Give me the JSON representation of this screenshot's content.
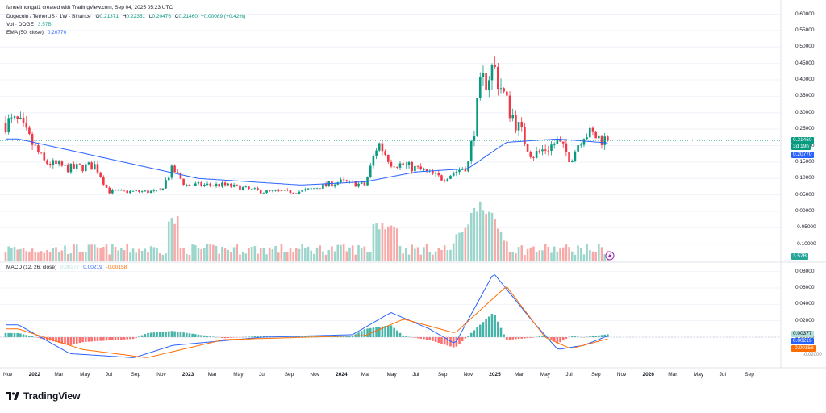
{
  "header": {
    "attribution": "fanuelmungai1 created with TradingView.com, Sep 04, 2025 05:23 UTC",
    "symbol": "Dogecoin / TetherUS · 1W · Binance",
    "ohlc": {
      "o_label": "O",
      "o": "0.21371",
      "h_label": "H",
      "h": "0.22351",
      "l_label": "L",
      "l": "0.20476",
      "c_label": "C",
      "c": "0.21460",
      "change": "+0.00089 (+0.42%)"
    },
    "vol_label": "Vol · DOGE",
    "vol_value": "3.57B",
    "ema_label": "EMA (50, close)",
    "ema_value": "0.20770"
  },
  "macd_legend": {
    "label": "MACD (12, 26, close)",
    "hist": "0.00377",
    "macd": "0.00219",
    "signal": "-0.00158"
  },
  "colors": {
    "up": "#089981",
    "down": "#f23645",
    "ema": "#2962ff",
    "macd": "#2962ff",
    "signal": "#ff6d00",
    "hist_up": "#26a69a",
    "hist_down": "#ff5252",
    "grid": "#f0f3fa",
    "price_line": "#26a69a"
  },
  "price_axis": {
    "ticks": [
      "0.60000",
      "0.55000",
      "0.50000",
      "0.45000",
      "0.40000",
      "0.35000",
      "0.30000",
      "0.25000",
      "0.20000",
      "0.15000",
      "0.10000",
      "0.05000",
      "0.00000",
      "-0.05000",
      "-0.10000"
    ],
    "last_price": "0.21460",
    "countdown": "3d 19h",
    "ema_badge": "0.20770",
    "vol_badge": "3.57B"
  },
  "macd_axis": {
    "ticks": [
      "0.08000",
      "0.06000",
      "0.04000",
      "0.02000",
      "0.00000"
    ],
    "hist_badge": "0.00377",
    "macd_badge": "0.00219",
    "signal_badge": "-0.00158",
    "partial_tick": "-0.02000"
  },
  "time_axis": [
    "Nov",
    "2022",
    "Mar",
    "May",
    "Jul",
    "Sep",
    "Nov",
    "2023",
    "Mar",
    "May",
    "Jul",
    "Sep",
    "Nov",
    "2024",
    "Mar",
    "May",
    "Jul",
    "Sep",
    "Nov",
    "2025",
    "Mar",
    "May",
    "Jul",
    "Sep",
    "Nov",
    "2026",
    "Mar",
    "May",
    "Jul",
    "Sep"
  ],
  "logo": {
    "text": "TradingView",
    "icon": "tradingview-logo-icon"
  },
  "chart_data": {
    "type": "candlestick",
    "title": "Dogecoin / TetherUS · 1W · Binance",
    "interval": "1W",
    "ylim": [
      -0.1,
      0.6
    ],
    "grid": true,
    "legend_position": "top-left",
    "series": [
      {
        "name": "DOGE/USDT",
        "unit": "USDT",
        "anchors": [
          {
            "x": "2021-11",
            "y": 0.27
          },
          {
            "x": "2022-01",
            "y": 0.15
          },
          {
            "x": "2022-03",
            "y": 0.13
          },
          {
            "x": "2022-05",
            "y": 0.14
          },
          {
            "x": "2022-06",
            "y": 0.06
          },
          {
            "x": "2022-09",
            "y": 0.06
          },
          {
            "x": "2022-10",
            "y": 0.06
          },
          {
            "x": "2022-11",
            "y": 0.13
          },
          {
            "x": "2022-12",
            "y": 0.08
          },
          {
            "x": "2023-03",
            "y": 0.08
          },
          {
            "x": "2023-06",
            "y": 0.06
          },
          {
            "x": "2023-09",
            "y": 0.06
          },
          {
            "x": "2023-12",
            "y": 0.09
          },
          {
            "x": "2024-02",
            "y": 0.08
          },
          {
            "x": "2024-03",
            "y": 0.21
          },
          {
            "x": "2024-04",
            "y": 0.15
          },
          {
            "x": "2024-06",
            "y": 0.13
          },
          {
            "x": "2024-08",
            "y": 0.1
          },
          {
            "x": "2024-10",
            "y": 0.14
          },
          {
            "x": "2024-11",
            "y": 0.38
          },
          {
            "x": "2024-12",
            "y": 0.44
          },
          {
            "x": "2025-01",
            "y": 0.33
          },
          {
            "x": "2025-03",
            "y": 0.17
          },
          {
            "x": "2025-05",
            "y": 0.21
          },
          {
            "x": "2025-06",
            "y": 0.16
          },
          {
            "x": "2025-07",
            "y": 0.24
          },
          {
            "x": "2025-09",
            "y": 0.2146
          }
        ]
      },
      {
        "name": "EMA (50, close)",
        "anchors": [
          {
            "x": "2021-11",
            "y": 0.22
          },
          {
            "x": "2022-06",
            "y": 0.16
          },
          {
            "x": "2023-01",
            "y": 0.1
          },
          {
            "x": "2023-09",
            "y": 0.08
          },
          {
            "x": "2024-02",
            "y": 0.09
          },
          {
            "x": "2024-06",
            "y": 0.12
          },
          {
            "x": "2024-10",
            "y": 0.13
          },
          {
            "x": "2025-01",
            "y": 0.21
          },
          {
            "x": "2025-05",
            "y": 0.22
          },
          {
            "x": "2025-09",
            "y": 0.2077
          }
        ]
      }
    ],
    "volume": {
      "name": "Vol · DOGE",
      "last": "3.57B",
      "peak_month": "2024-11"
    },
    "macd": {
      "ylim": [
        -0.03,
        0.09
      ],
      "ticks": [
        0.08,
        0.06,
        0.04,
        0.02,
        0.0
      ],
      "macd_anchors": [
        {
          "x": "2021-11",
          "y": 0.015
        },
        {
          "x": "2022-03",
          "y": -0.02
        },
        {
          "x": "2022-08",
          "y": -0.025
        },
        {
          "x": "2022-11",
          "y": -0.01
        },
        {
          "x": "2023-06",
          "y": 0.0
        },
        {
          "x": "2024-01",
          "y": 0.003
        },
        {
          "x": "2024-04",
          "y": 0.03
        },
        {
          "x": "2024-07",
          "y": 0.01
        },
        {
          "x": "2024-09",
          "y": -0.008
        },
        {
          "x": "2024-12",
          "y": 0.078
        },
        {
          "x": "2025-03",
          "y": 0.02
        },
        {
          "x": "2025-05",
          "y": -0.015
        },
        {
          "x": "2025-07",
          "y": -0.01
        },
        {
          "x": "2025-09",
          "y": 0.00219
        }
      ],
      "signal_anchors": [
        {
          "x": "2021-11",
          "y": 0.01
        },
        {
          "x": "2022-04",
          "y": -0.015
        },
        {
          "x": "2022-09",
          "y": -0.025
        },
        {
          "x": "2023-03",
          "y": -0.003
        },
        {
          "x": "2024-02",
          "y": 0.002
        },
        {
          "x": "2024-05",
          "y": 0.022
        },
        {
          "x": "2024-09",
          "y": 0.005
        },
        {
          "x": "2025-01",
          "y": 0.062
        },
        {
          "x": "2025-04",
          "y": 0.0
        },
        {
          "x": "2025-06",
          "y": -0.014
        },
        {
          "x": "2025-09",
          "y": -0.00158
        }
      ]
    }
  }
}
